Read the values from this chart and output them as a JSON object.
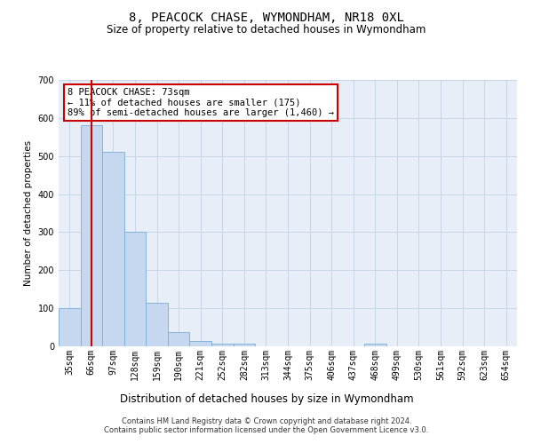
{
  "title": "8, PEACOCK CHASE, WYMONDHAM, NR18 0XL",
  "subtitle": "Size of property relative to detached houses in Wymondham",
  "xlabel": "Distribution of detached houses by size in Wymondham",
  "ylabel": "Number of detached properties",
  "footer_line1": "Contains HM Land Registry data © Crown copyright and database right 2024.",
  "footer_line2": "Contains public sector information licensed under the Open Government Licence v3.0.",
  "categories": [
    "35sqm",
    "66sqm",
    "97sqm",
    "128sqm",
    "159sqm",
    "190sqm",
    "221sqm",
    "252sqm",
    "282sqm",
    "313sqm",
    "344sqm",
    "375sqm",
    "406sqm",
    "437sqm",
    "468sqm",
    "499sqm",
    "530sqm",
    "561sqm",
    "592sqm",
    "623sqm",
    "654sqm"
  ],
  "values": [
    100,
    580,
    510,
    300,
    115,
    37,
    15,
    8,
    6,
    0,
    0,
    0,
    0,
    0,
    6,
    0,
    0,
    0,
    0,
    0,
    0
  ],
  "bar_color": "#c5d8f0",
  "bar_edge_color": "#7aadd4",
  "grid_color": "#c8d4e8",
  "background_color": "#e8eef8",
  "annotation_line1": "8 PEACOCK CHASE: 73sqm",
  "annotation_line2": "← 11% of detached houses are smaller (175)",
  "annotation_line3": "89% of semi-detached houses are larger (1,460) →",
  "annotation_box_color": "#ffffff",
  "annotation_box_edge": "#cc0000",
  "red_line_x": 1,
  "red_line_color": "#cc0000",
  "ylim": [
    0,
    700
  ],
  "title_fontsize": 10,
  "subtitle_fontsize": 8.5,
  "tick_fontsize": 7,
  "ylabel_fontsize": 7.5,
  "xlabel_fontsize": 8.5,
  "annotation_fontsize": 7.5,
  "footer_fontsize": 6
}
